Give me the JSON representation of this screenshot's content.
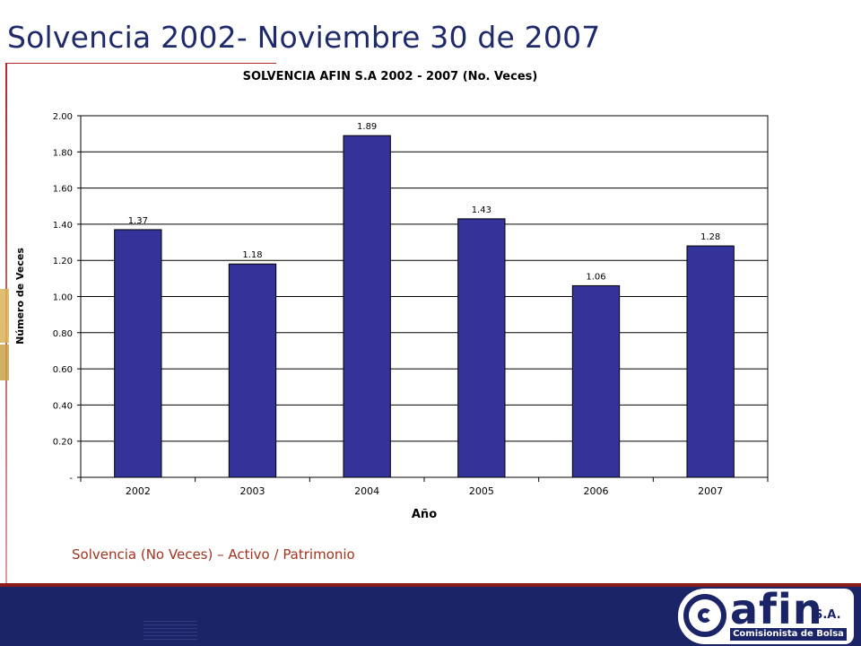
{
  "slide": {
    "title": "Solvencia 2002- Noviembre 30 de 2007",
    "caption": "Solvencia (No Veces) – Activo / Patrimonio"
  },
  "logo": {
    "word": "afin",
    "suffix": "S.A.",
    "subtitle": "Comisionista de Bolsa"
  },
  "colors": {
    "bar": "#333399",
    "title": "#1f2a6b",
    "accent": "#8b1a1a",
    "footer": "#1b2466",
    "caption": "#a0341f"
  },
  "chart_data": {
    "type": "bar",
    "title": "SOLVENCIA  AFIN S.A 2002 - 2007 (No. Veces)",
    "xlabel": "Año",
    "ylabel": "Número de Veces",
    "categories": [
      "2002",
      "2003",
      "2004",
      "2005",
      "2006",
      "2007"
    ],
    "values": [
      1.37,
      1.18,
      1.89,
      1.43,
      1.06,
      1.28
    ],
    "data_labels": [
      "1.37",
      "1.18",
      "1.89",
      "1.43",
      "1.06",
      "1.28"
    ],
    "ylim": [
      0,
      2.0
    ],
    "yticks": [
      0,
      0.2,
      0.4,
      0.6,
      0.8,
      1.0,
      1.2,
      1.4,
      1.6,
      1.8,
      2.0
    ],
    "ytick_labels": [
      "-",
      "0.20",
      "0.40",
      "0.60",
      "0.80",
      "1.00",
      "1.20",
      "1.40",
      "1.60",
      "1.80",
      "2.00"
    ],
    "grid": true,
    "legend": "none"
  }
}
